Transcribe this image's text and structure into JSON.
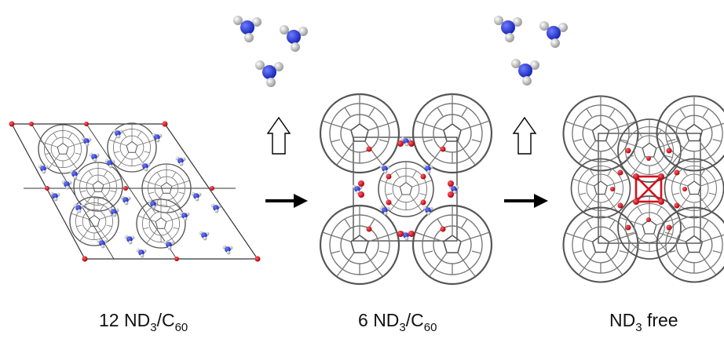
{
  "colors": {
    "nitrogen": "#1f2fd0",
    "hydrogen": "#d8d8d8",
    "oxygen_red": "#d3111d",
    "cage": "#666666",
    "arrow": "#000000"
  },
  "panels": [
    {
      "id": "panel-12",
      "caption": {
        "count": "12",
        "mol": "ND",
        "sub1": "3",
        "sep": "/C",
        "sub2": "60",
        "suffix": ""
      }
    },
    {
      "id": "panel-6",
      "caption": {
        "count": "6",
        "mol": "ND",
        "sub1": "3",
        "sep": "/C",
        "sub2": "60",
        "suffix": ""
      }
    },
    {
      "id": "panel-free",
      "caption": {
        "count": "",
        "mol": "ND",
        "sub1": "3",
        "sep": "",
        "sub2": "",
        "suffix": " free"
      }
    }
  ],
  "icons": [
    "ammonia-molecule-icon",
    "release-arrow-icon",
    "reaction-arrow-icon",
    "fullerene-icon"
  ]
}
